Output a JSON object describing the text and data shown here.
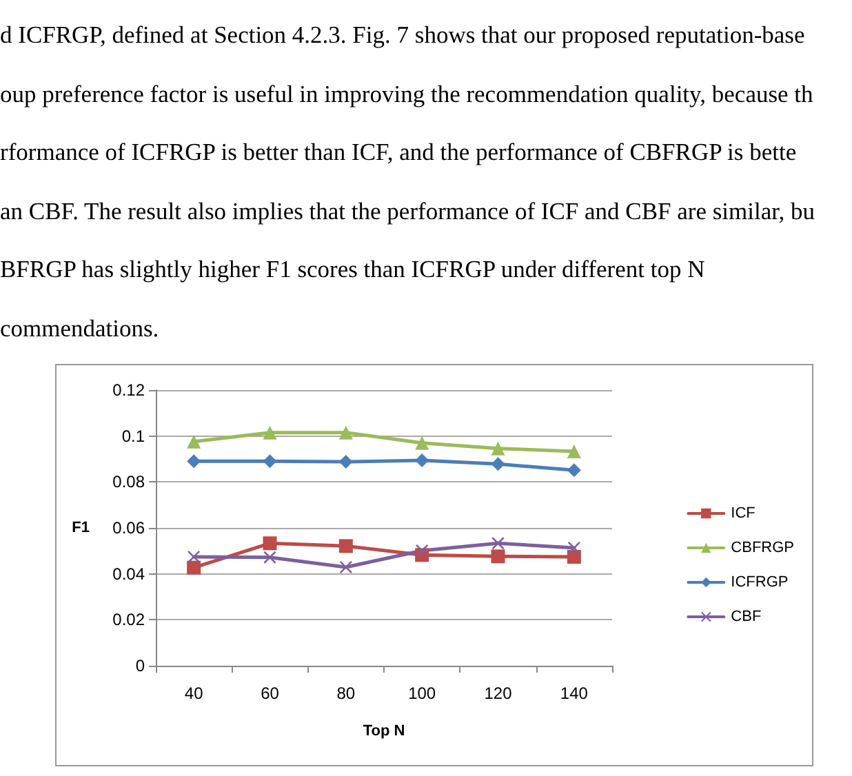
{
  "chart_data": {
    "type": "line",
    "annotations": [
      "d ICFRGP, defined at Section 4.2.3.  Fig. 7 shows that our proposed reputation-base",
      "oup preference factor is useful in improving the recommendation quality, because th",
      "rformance of ICFRGP is better than ICF, and the performance of CBFRGP is bette",
      "an CBF. The result also implies that the performance of ICF and CBF are similar, bu",
      "BFRGP has slightly higher F1 scores than ICFRGP under different top N",
      "commendations."
    ],
    "xlabel": "Top N",
    "ylabel": "F1",
    "categories": [
      "40",
      "60",
      "80",
      "100",
      "120",
      "140"
    ],
    "series": [
      {
        "name": "ICF",
        "color": "#be4b48",
        "marker": "square",
        "values": [
          0.0427,
          0.0533,
          0.0521,
          0.0482,
          0.0476,
          0.0474
        ]
      },
      {
        "name": "CBFRGP",
        "color": "#9bbb59",
        "marker": "triangle",
        "values": [
          0.0976,
          0.1015,
          0.1015,
          0.097,
          0.0946,
          0.0933
        ]
      },
      {
        "name": "ICFRGP",
        "color": "#4a7ebb",
        "marker": "diamond",
        "values": [
          0.089,
          0.089,
          0.0888,
          0.0894,
          0.0878,
          0.0851
        ]
      },
      {
        "name": "CBF",
        "color": "#7d5fa0",
        "marker": "cross",
        "values": [
          0.0474,
          0.0472,
          0.0429,
          0.0501,
          0.0533,
          0.0513
        ]
      }
    ],
    "ylim": [
      0,
      0.12
    ],
    "yticks": [
      0,
      0.02,
      0.04,
      0.06,
      0.08,
      0.1,
      0.12
    ],
    "grid": "y",
    "legend": "right",
    "line_style": "solid"
  }
}
